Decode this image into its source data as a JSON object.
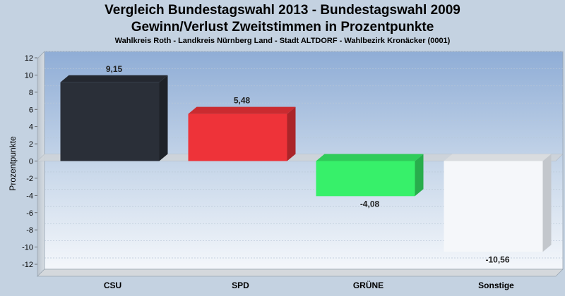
{
  "chart_data": {
    "type": "bar",
    "title": "Vergleich Bundestagswahl 2013  - Bundestagswahl 2009",
    "subtitle": "Gewinn/Verlust Zweitstimmen in Prozentpunkte",
    "subsubtitle": "Wahlkreis Roth - Landkreis Nürnberg Land - Stadt ALTDORF - Wahlbezirk Kronäcker (0001)",
    "ylabel": "Prozentpunkte",
    "xlabel": "",
    "ylim": [
      -12,
      12
    ],
    "yticks": [
      "12",
      "10",
      "8",
      "6",
      "4",
      "2",
      "0",
      "-2",
      "-4",
      "-6",
      "-8",
      "-10",
      "-12"
    ],
    "categories": [
      "CSU",
      "SPD",
      "GRÜNE",
      "Sonstige"
    ],
    "values": [
      9.15,
      5.48,
      -4.08,
      -10.56
    ],
    "value_labels": [
      "9,15",
      "5,48",
      "-4,08",
      "-10,56"
    ],
    "colors": [
      "#2a2f38",
      "#ee3339",
      "#37f06a",
      "#f4f6f9"
    ],
    "grid": true,
    "legend": "none"
  }
}
